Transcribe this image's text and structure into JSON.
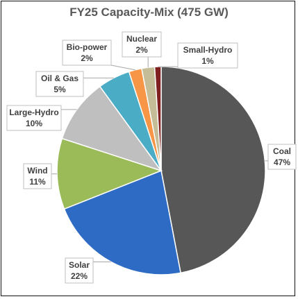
{
  "chart_data": {
    "type": "pie",
    "title": "FY25 Capacity-Mix (475 GW)",
    "slices": [
      {
        "name": "Coal",
        "value": 47,
        "label": "47%",
        "color": "#575757"
      },
      {
        "name": "Solar",
        "value": 22,
        "label": "22%",
        "color": "#2e6bc4"
      },
      {
        "name": "Wind",
        "value": 11,
        "label": "11%",
        "color": "#9bbb59"
      },
      {
        "name": "Large-Hydro",
        "value": 10,
        "label": "10%",
        "color": "#bfbfbf"
      },
      {
        "name": "Oil & Gas",
        "value": 5,
        "label": "5%",
        "color": "#4bacc6"
      },
      {
        "name": "Bio-power",
        "value": 2,
        "label": "2%",
        "color": "#f79646"
      },
      {
        "name": "Nuclear",
        "value": 2,
        "label": "2%",
        "color": "#c4bd97"
      },
      {
        "name": "Small-Hydro",
        "value": 1,
        "label": "1%",
        "color": "#7f1f1f"
      }
    ],
    "legend": "none",
    "data_labels": "outside-with-leader-lines"
  }
}
